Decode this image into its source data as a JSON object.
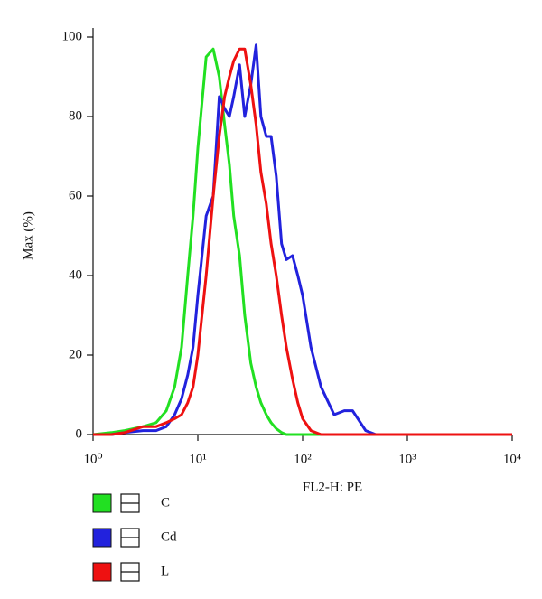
{
  "chart_data": {
    "type": "line",
    "xlabel": "FL2-H: PE",
    "ylabel": "Max (%)",
    "xscale": "log",
    "xlim": [
      1,
      10000
    ],
    "ylim": [
      0,
      100
    ],
    "xticks": [
      {
        "value": 1,
        "label": "10⁰"
      },
      {
        "value": 10,
        "label": "10¹"
      },
      {
        "value": 100,
        "label": "10²"
      },
      {
        "value": 1000,
        "label": "10³"
      },
      {
        "value": 10000,
        "label": "10⁴"
      }
    ],
    "yticks": [
      0,
      20,
      40,
      60,
      80,
      100
    ],
    "legend": "bottom-left",
    "x": [
      1,
      1.5,
      2,
      3,
      4,
      5,
      6,
      7,
      8,
      9,
      10,
      12,
      14,
      16,
      18,
      20,
      22,
      25,
      28,
      32,
      36,
      40,
      45,
      50,
      56,
      63,
      70,
      80,
      90,
      100,
      120,
      150,
      200,
      250,
      300,
      400,
      500,
      700,
      1000,
      2000,
      5000,
      10000
    ],
    "series": [
      {
        "name": "C",
        "color": "#22e022",
        "values": [
          0,
          0.5,
          1,
          2,
          3,
          6,
          12,
          22,
          40,
          55,
          72,
          95,
          97,
          90,
          78,
          68,
          55,
          45,
          30,
          18,
          12,
          8,
          5,
          3,
          1.5,
          0.5,
          0,
          0,
          0,
          0,
          0,
          0,
          0,
          0,
          0,
          0,
          0,
          0,
          0,
          0,
          0,
          0
        ]
      },
      {
        "name": "Cd",
        "color": "#2222dd",
        "values": [
          0,
          0,
          0.5,
          1,
          1,
          2,
          5,
          9,
          15,
          22,
          35,
          55,
          60,
          85,
          82,
          80,
          85,
          93,
          80,
          88,
          98,
          80,
          75,
          75,
          65,
          48,
          44,
          45,
          40,
          35,
          22,
          12,
          5,
          6,
          6,
          1,
          0,
          0,
          0,
          0,
          0,
          0
        ]
      },
      {
        "name": "L",
        "color": "#ee1111",
        "values": [
          0,
          0,
          0.5,
          2,
          2,
          3,
          4,
          5,
          8,
          12,
          20,
          40,
          60,
          75,
          85,
          90,
          94,
          97,
          97,
          88,
          78,
          66,
          58,
          48,
          40,
          30,
          22,
          14,
          8,
          4,
          1,
          0,
          0,
          0,
          0,
          0,
          0,
          0,
          0,
          0,
          0,
          0
        ]
      }
    ]
  }
}
